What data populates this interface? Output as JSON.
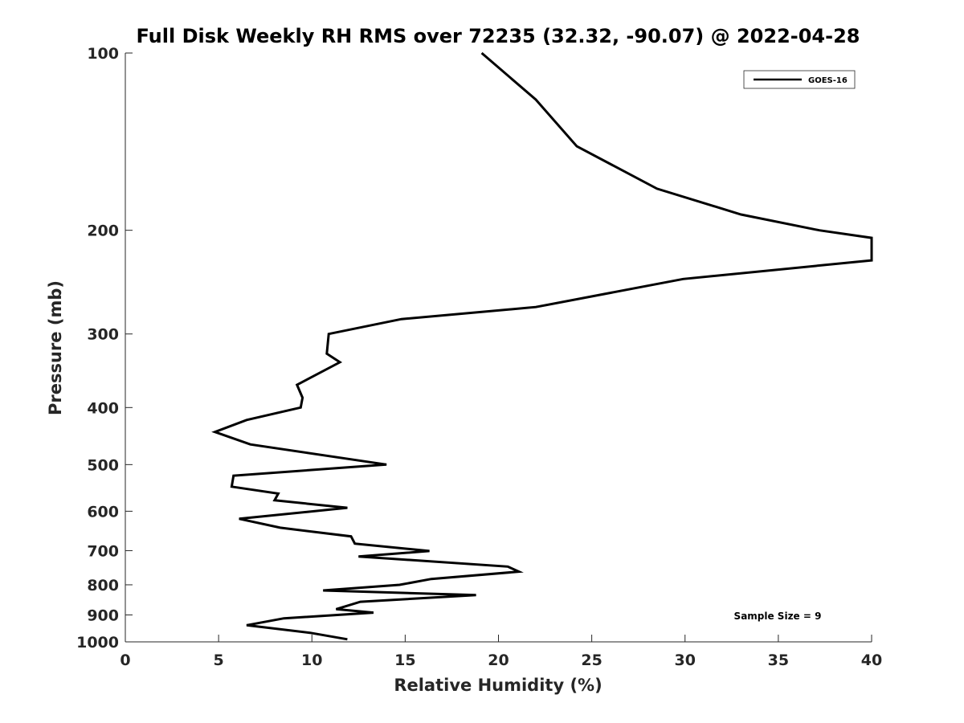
{
  "chart_data": {
    "type": "line",
    "title": "Full Disk Weekly RH RMS over 72235 (32.32, -90.07) @ 2022-04-28",
    "xlabel": "Relative Humidity (%)",
    "ylabel": "Pressure (mb)",
    "xlim": [
      0,
      40
    ],
    "ylim": [
      100,
      1000
    ],
    "y_scale": "log",
    "y_reversed": true,
    "x_ticks": [
      0,
      5,
      10,
      15,
      20,
      25,
      30,
      35,
      40
    ],
    "y_ticks": [
      100,
      200,
      300,
      400,
      500,
      600,
      700,
      800,
      900,
      1000
    ],
    "grid": false,
    "legend_position": "top-right",
    "annotation": "Sample Size = 9",
    "line_color": "#000000",
    "series": [
      {
        "name": "GOES-16",
        "x": [
          19.1,
          22.0,
          24.2,
          28.5,
          33.0,
          37.2,
          40.0,
          40.0,
          29.9,
          22.0,
          14.8,
          10.9,
          10.8,
          11.5,
          9.2,
          9.5,
          9.4,
          6.5,
          4.8,
          6.7,
          14.0,
          5.8,
          5.7,
          8.2,
          8.0,
          11.9,
          6.1,
          8.3,
          12.1,
          12.3,
          16.3,
          12.5,
          20.5,
          21.1,
          16.4,
          14.7,
          10.6,
          18.8,
          12.6,
          11.3,
          13.3,
          8.5,
          6.5,
          9.9,
          11.9
        ],
        "y": [
          100,
          120,
          144,
          170,
          188,
          200,
          206,
          225,
          242,
          270,
          283,
          300,
          324,
          335,
          366,
          385,
          400,
          420,
          440,
          462,
          500,
          522,
          545,
          560,
          575,
          592,
          618,
          640,
          662,
          681,
          701,
          716,
          745,
          760,
          782,
          800,
          818,
          833,
          855,
          880,
          892,
          912,
          937,
          965,
          990
        ]
      }
    ]
  }
}
